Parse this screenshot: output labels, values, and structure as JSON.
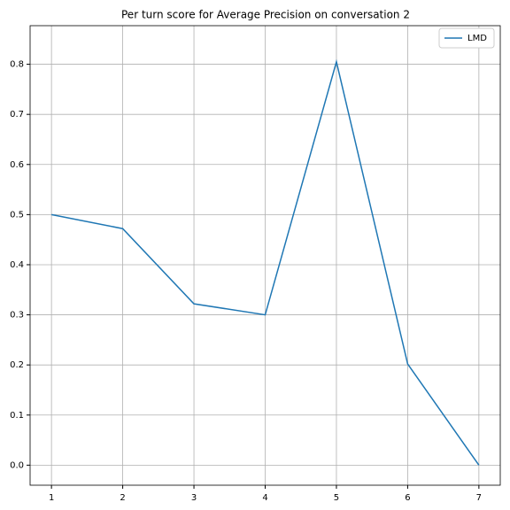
{
  "chart_data": {
    "type": "line",
    "title": "Per turn score for Average Precision on conversation 2",
    "x": [
      1,
      2,
      3,
      4,
      5,
      6,
      7
    ],
    "series": [
      {
        "name": "LMD",
        "color": "#1f77b4",
        "values": [
          0.5,
          0.472,
          0.322,
          0.3,
          0.805,
          0.202,
          0.0
        ]
      }
    ],
    "xlim": [
      0.7,
      7.3
    ],
    "xticks": [
      1,
      2,
      3,
      4,
      5,
      6,
      7
    ],
    "ylim": [
      -0.04,
      0.877
    ],
    "yticks": [
      {
        "value": 0,
        "label": "0.0"
      },
      0.1,
      0.2,
      0.3,
      0.4,
      0.5,
      0.6,
      0.7,
      0.8
    ],
    "grid": true,
    "legend": "upper-right"
  }
}
